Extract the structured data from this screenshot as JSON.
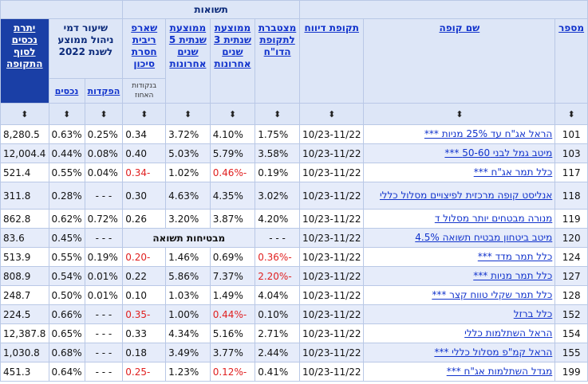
{
  "header": {
    "returns_group": "תשואות",
    "col_number": "מספר",
    "col_name": "שם קופה",
    "col_period": "תקופת דיווח",
    "col_cumulative": "מצטברת לתקופת הדו\"ח",
    "col_avg3": "ממוצעת שנתית 3 שנים אחרונות",
    "col_avg5": "ממוצעת שנתית 5 שנים אחרונות",
    "col_sharpe": "שארפ ריבית חסרת סיכון",
    "col_sharpe_note": "בנקודות האחוז",
    "col_mgmt_fee": "שיעור דמי ניהול ממוצע לשנת 2022",
    "col_mgmt_deposits": "הפקדות",
    "col_mgmt_assets": "נכסים",
    "col_balance": "יתרת נכסים לסוף התקופה"
  },
  "sort_glyph": "⬍",
  "rows": [
    {
      "num": "101",
      "name": "הראל אג\"ח עד 25% מניות ***",
      "period": "10/23-11/22",
      "cum": "1.75%",
      "avg3": "4.10%",
      "avg5": "3.72%",
      "sharpe": "0.34",
      "dep": "0.25%",
      "assets_fee": "0.63%",
      "balance": "8,280.5"
    },
    {
      "num": "103",
      "name": "מיטב גמל לבני 50-60 ***",
      "period": "10/23-11/22",
      "cum": "3.58%",
      "avg3": "5.79%",
      "avg5": "5.03%",
      "sharpe": "0.40",
      "dep": "0.08%",
      "assets_fee": "0.44%",
      "balance": "12,004.4"
    },
    {
      "num": "117",
      "name": "כלל תמר אג\"ח ***",
      "period": "10/23-11/22",
      "cum": "0.19%",
      "avg3": "-0.46%",
      "avg5": "1.02%",
      "sharpe": "-0.34",
      "dep": "0.04%",
      "assets_fee": "0.55%",
      "balance": "521.4"
    },
    {
      "num": "118",
      "name": "אנליסט קופה מרכזית לפיצויים מסלול כללי",
      "period": "10/23-11/22",
      "cum": "3.02%",
      "avg3": "4.35%",
      "avg5": "4.63%",
      "sharpe": "0.30",
      "dep": "- - -",
      "assets_fee": "0.28%",
      "balance": "311.8"
    },
    {
      "num": "119",
      "name": "מנורה מבטחים יותר מסלול ד",
      "period": "10/23-11/22",
      "cum": "4.20%",
      "avg3": "3.87%",
      "avg5": "3.20%",
      "sharpe": "0.26",
      "dep": "0.72%",
      "assets_fee": "0.62%",
      "balance": "862.8"
    },
    {
      "num": "120",
      "name": "מיטב ביטחון מבטיח תשואה 4.5%",
      "period": "10/23-11/22",
      "cum": "- - -",
      "special": "מבטיחות תשואה",
      "dep": "- - -",
      "assets_fee": "0.45%",
      "balance": "83.6"
    },
    {
      "num": "124",
      "name": "כלל תמר מדד ***",
      "period": "10/23-11/22",
      "cum": "-0.36%",
      "avg3": "0.69%",
      "avg5": "1.46%",
      "sharpe": "-0.20",
      "dep": "0.19%",
      "assets_fee": "0.55%",
      "balance": "513.9"
    },
    {
      "num": "127",
      "name": "כלל תמר מניות ***",
      "period": "10/23-11/22",
      "cum": "-2.20%",
      "avg3": "7.37%",
      "avg5": "5.86%",
      "sharpe": "0.22",
      "dep": "0.01%",
      "assets_fee": "0.54%",
      "balance": "808.9"
    },
    {
      "num": "128",
      "name": "כלל תמר שקלי טווח קצר ***",
      "period": "10/23-11/22",
      "cum": "4.04%",
      "avg3": "1.49%",
      "avg5": "1.03%",
      "sharpe": "0.10",
      "dep": "0.01%",
      "assets_fee": "0.50%",
      "balance": "248.7"
    },
    {
      "num": "152",
      "name": "כלל ברזל",
      "period": "10/23-11/22",
      "cum": "0.10%",
      "avg3": "-0.44%",
      "avg5": "1.00%",
      "sharpe": "-0.35",
      "dep": "- - -",
      "assets_fee": "0.66%",
      "balance": "224.5"
    },
    {
      "num": "154",
      "name": "הראל השתלמות כללי",
      "period": "10/23-11/22",
      "cum": "2.71%",
      "avg3": "5.16%",
      "avg5": "4.34%",
      "sharpe": "0.33",
      "dep": "- - -",
      "assets_fee": "0.65%",
      "balance": "12,387.8"
    },
    {
      "num": "155",
      "name": "הראל קמ\"פ מסלול כללי ***",
      "period": "10/23-11/22",
      "cum": "2.44%",
      "avg3": "3.77%",
      "avg5": "3.49%",
      "sharpe": "0.18",
      "dep": "- - -",
      "assets_fee": "0.68%",
      "balance": "1,030.8"
    },
    {
      "num": "199",
      "name": "מגדל השתלמות אג\"ח ***",
      "period": "10/23-11/22",
      "cum": "0.41%",
      "avg3": "-0.12%",
      "avg5": "1.23%",
      "sharpe": "-0.25",
      "dep": "- - -",
      "assets_fee": "0.64%",
      "balance": "451.3"
    }
  ]
}
